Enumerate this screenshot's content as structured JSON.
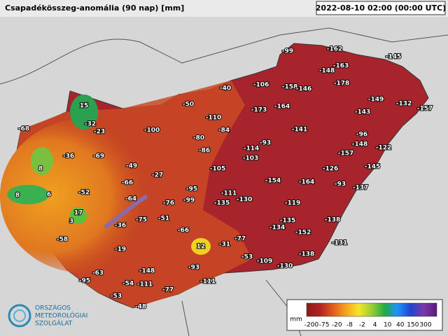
{
  "header": {
    "title": "Csapadékösszeg-anomália (90 nap) [mm]",
    "timestamp": "2022-08-10 02:00 (00:00 UTC)"
  },
  "stations": [
    -99,
    -162,
    -145,
    -148,
    -163,
    -178,
    -106,
    -158,
    -146,
    -40,
    -149,
    -132,
    -157,
    -50,
    -173,
    -164,
    -143,
    -110,
    -68,
    15,
    -32,
    -23,
    -100,
    -84,
    -141,
    -96,
    -80,
    -93,
    -148,
    -122,
    -86,
    -114,
    -157,
    -36,
    -69,
    -103,
    -49,
    -126,
    -145,
    8,
    -105,
    -27,
    -154,
    -164,
    -93,
    -66,
    -137,
    6,
    8,
    -52,
    -95,
    -111,
    -64,
    -130,
    -135,
    -76,
    -99,
    -119,
    17,
    3,
    -75,
    -51,
    -138,
    -135,
    -36,
    -134,
    -152,
    -66,
    -58,
    -77,
    -31,
    12,
    -131,
    -19,
    -53,
    -138,
    -109,
    -93,
    -130,
    -63,
    -148,
    -95,
    -111,
    -54,
    -111,
    -77,
    -53,
    -48
  ],
  "legend": {
    "unit": "mm",
    "labels": [
      "-200",
      "-75",
      "-20",
      "-8",
      "-2",
      "4",
      "10",
      "40",
      "150",
      "300"
    ]
  },
  "logo": {
    "lines": [
      "ORSZÁGOS",
      "METEOROLÓGIAI",
      "SZOLGÁLAT"
    ]
  }
}
